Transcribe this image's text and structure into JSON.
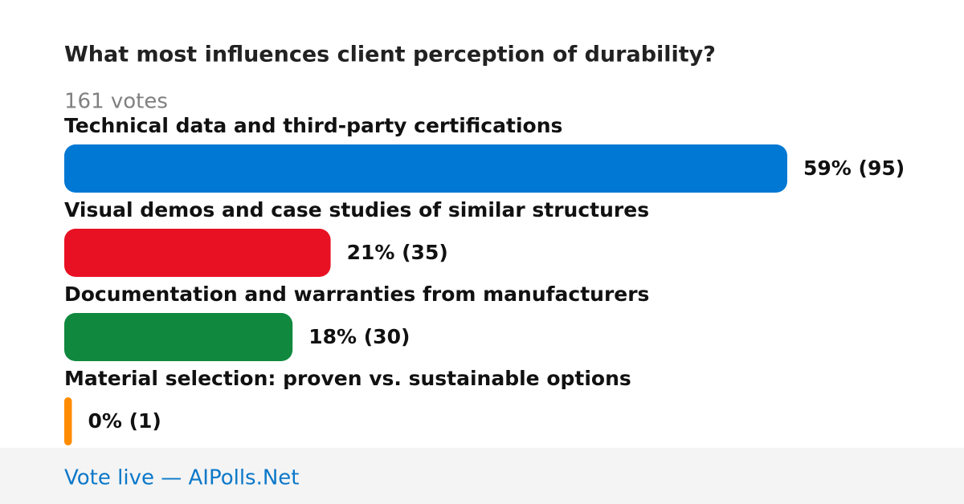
{
  "chart_data": {
    "type": "bar",
    "orientation": "horizontal",
    "title": "What most influences client perception of durability?",
    "subtitle": "161 votes",
    "categories": [
      "Technical data and third-party certifications",
      "Visual demos and case studies of similar structures",
      "Documentation and warranties from manufacturers",
      "Material selection: proven vs. sustainable options"
    ],
    "values": [
      95,
      35,
      30,
      1
    ],
    "value_labels": [
      "59% (95)",
      "21% (35)",
      "18% (30)",
      "0% (1)"
    ],
    "colors": [
      "#0078d4",
      "#e81123",
      "#10893e",
      "#ff8c00"
    ],
    "footer": "Vote live — AIPolls.Net"
  }
}
